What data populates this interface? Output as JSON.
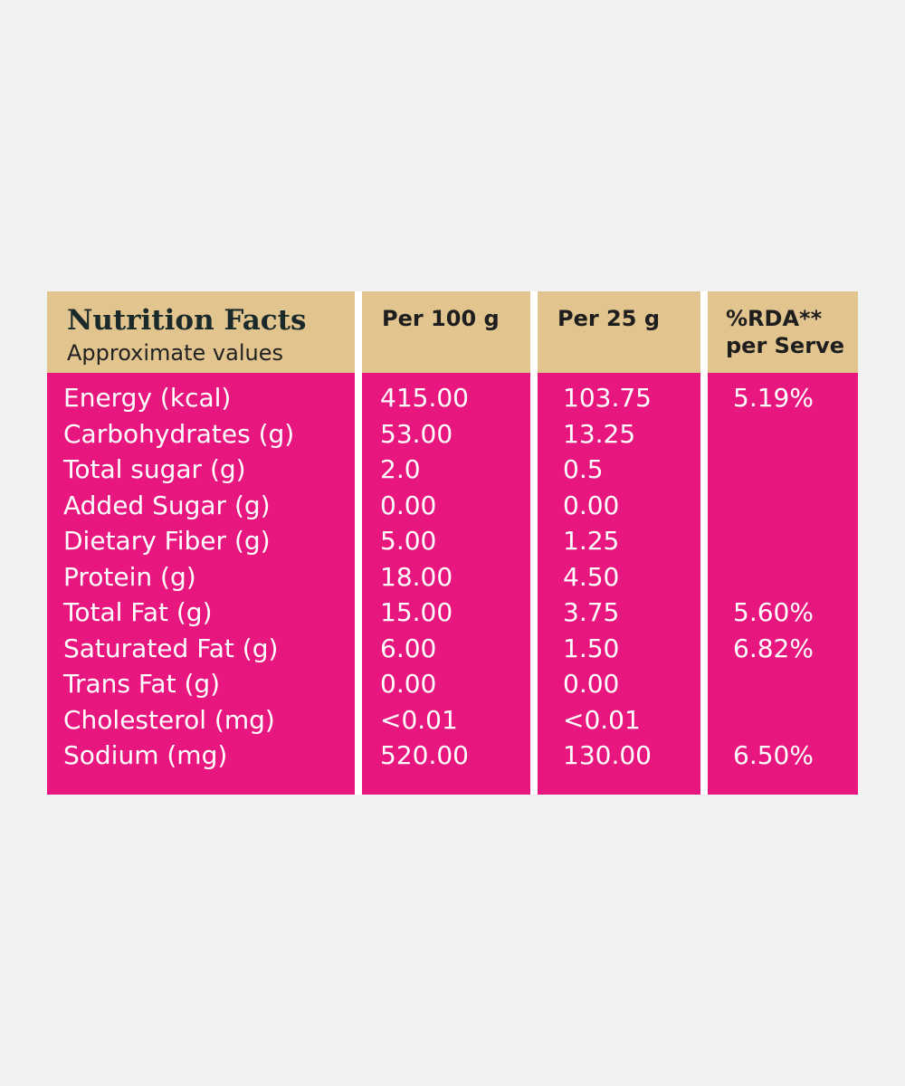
{
  "header": {
    "title": "Nutrition Facts",
    "subtitle": "Approximate values"
  },
  "columns": [
    [
      "Per 100 g"
    ],
    [
      "Per 25 g"
    ],
    [
      "%RDA**",
      "per Serve"
    ]
  ],
  "rows": [
    {
      "name": "Energy (kcal)",
      "per_100g": "415.00",
      "per_25g": "103.75",
      "rda": "5.19%"
    },
    {
      "name": "Carbohydrates (g)",
      "per_100g": "53.00",
      "per_25g": "13.25"
    },
    {
      "name": "Total sugar (g)",
      "per_100g": "2.0",
      "per_25g": "0.5"
    },
    {
      "name": "Added Sugar (g)",
      "per_100g": "0.00",
      "per_25g": "0.00"
    },
    {
      "name": "Dietary Fiber (g)",
      "per_100g": "5.00",
      "per_25g": "1.25"
    },
    {
      "name": "Protein (g)",
      "per_100g": "18.00",
      "per_25g": "4.50"
    },
    {
      "name": "Total Fat (g)",
      "per_100g": "15.00",
      "per_25g": "3.75",
      "rda": "5.60%"
    },
    {
      "name": "Saturated Fat (g)",
      "per_100g": "6.00",
      "per_25g": "1.50",
      "rda": "6.82%"
    },
    {
      "name": "Trans Fat (g)",
      "per_100g": "0.00",
      "per_25g": "0.00"
    },
    {
      "name": "Cholesterol (mg)",
      "per_100g": "<0.01",
      "per_25g": "<0.01"
    },
    {
      "name": "Sodium (mg)",
      "per_100g": "520.00",
      "per_25g": "130.00",
      "rda": "6.50%"
    }
  ]
}
